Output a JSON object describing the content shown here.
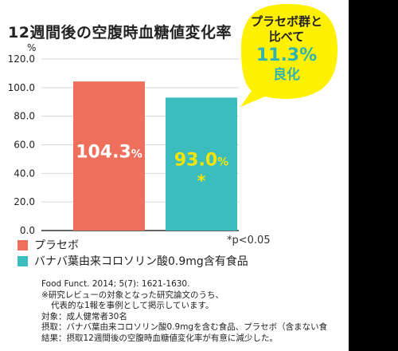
{
  "title": "12週間後の空腹時血糖値変化率",
  "callout": {
    "line1": "プラセボ群と",
    "line2": "比べて",
    "value": "11.3%",
    "line3": "良化"
  },
  "legend": [
    {
      "label": "プラセボ",
      "color": "#ef6f5d"
    },
    {
      "label": "バナバ葉由来コロソリン酸0.9mg含有食品",
      "color": "#3cbdbd"
    }
  ],
  "significance_note": "*p<0.05",
  "notes": [
    "Food Funct. 2014; 5(7): 1621-1630.",
    "※研究レビューの対象となった研究論文のうち、",
    "代表的な1報を事例として掲示しています。",
    "対象：成人健常者30名",
    "摂取：バナバ葉由来コロソリン酸0.9mgを含む食品、プラセボ（含まない食",
    "結果：摂取12週間後の空腹時血糖値変化率が有意に減少した。"
  ],
  "chart_data": {
    "type": "bar",
    "title": "12週間後の空腹時血糖値変化率",
    "ylabel": "%",
    "ylim": [
      0,
      120
    ],
    "yticks": [
      "0.0",
      "20.0",
      "40.0",
      "60.0",
      "80.0",
      "100.0",
      "120.0"
    ],
    "grid": true,
    "legend_position": "bottom",
    "categories": [
      "プラセボ",
      "バナバ葉由来コロソリン酸0.9mg含有食品"
    ],
    "values": [
      104.3,
      93.0
    ],
    "value_labels": [
      "104.3",
      "93.0"
    ],
    "value_unit": "%",
    "colors": [
      "#ef6f5d",
      "#3cbdbd"
    ],
    "label_colors": [
      "#ffffff",
      "#f5e500"
    ],
    "significance_marker": [
      "",
      "*"
    ]
  }
}
